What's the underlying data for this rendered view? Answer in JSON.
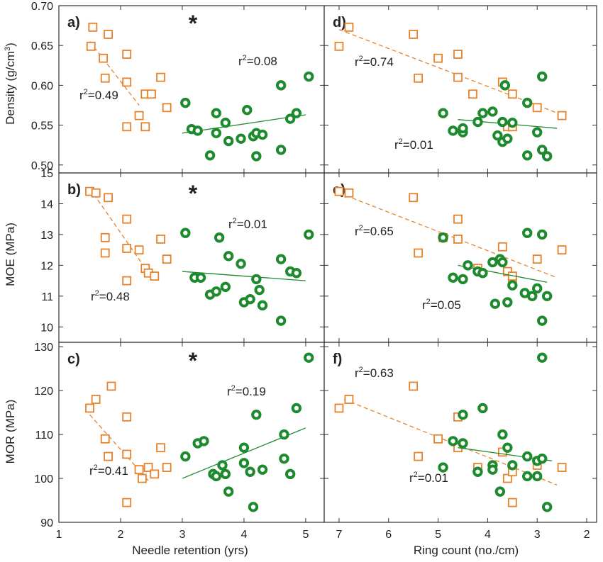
{
  "colors": {
    "orange": "#e8822a",
    "green": "#1e8a2e",
    "axis": "#333333"
  },
  "axes": {
    "left_xlabel": "Needle retention (yrs)",
    "right_xlabel": "Ring count (no./cm)",
    "left_ticks": [
      "1",
      "2",
      "3",
      "4",
      "5"
    ],
    "right_ticks": [
      "7",
      "6",
      "5",
      "4",
      "3",
      "2"
    ],
    "rows": [
      {
        "ylabel": "Density (g/cm³)",
        "ticks": [
          "0.50",
          "0.55",
          "0.60",
          "0.65",
          "0.70"
        ]
      },
      {
        "ylabel": "MOE (MPa)",
        "ticks": [
          "10",
          "11",
          "12",
          "13",
          "14",
          "15"
        ]
      },
      {
        "ylabel": "MOR (MPa)",
        "ticks": [
          "90",
          "100",
          "110",
          "120",
          "130"
        ]
      }
    ]
  },
  "chart_data": [
    {
      "type": "scatter",
      "panel": "a)",
      "marker": "*",
      "xlim": [
        1,
        5.3
      ],
      "ylim": [
        0.49,
        0.7
      ],
      "ylabel": "Density (g/cm³)",
      "series": [
        {
          "marker": "square",
          "annotation": "r²=0.49",
          "trend": [
            [
              1.5,
              0.655
            ],
            [
              2.3,
              0.575
            ]
          ],
          "points": [
            [
              1.55,
              0.673
            ],
            [
              1.52,
              0.649
            ],
            [
              1.72,
              0.634
            ],
            [
              1.8,
              0.664
            ],
            [
              1.75,
              0.609
            ],
            [
              2.1,
              0.639
            ],
            [
              2.1,
              0.604
            ],
            [
              2.1,
              0.548
            ],
            [
              2.3,
              0.562
            ],
            [
              2.4,
              0.589
            ],
            [
              2.4,
              0.548
            ],
            [
              2.5,
              0.589
            ],
            [
              2.65,
              0.61
            ],
            [
              2.75,
              0.572
            ]
          ]
        },
        {
          "marker": "circle",
          "annotation": "r²=0.08",
          "trend": [
            [
              3.0,
              0.54
            ],
            [
              5.0,
              0.563
            ]
          ],
          "points": [
            [
              3.05,
              0.578
            ],
            [
              3.15,
              0.545
            ],
            [
              3.25,
              0.543
            ],
            [
              3.45,
              0.512
            ],
            [
              3.55,
              0.54
            ],
            [
              3.55,
              0.565
            ],
            [
              3.7,
              0.553
            ],
            [
              3.75,
              0.53
            ],
            [
              3.95,
              0.533
            ],
            [
              4.05,
              0.569
            ],
            [
              4.15,
              0.536
            ],
            [
              4.2,
              0.54
            ],
            [
              4.2,
              0.511
            ],
            [
              4.3,
              0.538
            ],
            [
              4.6,
              0.6
            ],
            [
              4.6,
              0.519
            ],
            [
              4.75,
              0.558
            ],
            [
              4.85,
              0.565
            ],
            [
              5.05,
              0.611
            ]
          ]
        }
      ]
    },
    {
      "type": "scatter",
      "panel": "b)",
      "marker": "*",
      "xlim": [
        1,
        5.3
      ],
      "ylim": [
        9.5,
        15.0
      ],
      "ylabel": "MOE (MPa)",
      "series": [
        {
          "marker": "square",
          "annotation": "r²=0.48",
          "trend": [
            [
              1.5,
              14.5
            ],
            [
              2.35,
              12.05
            ]
          ],
          "points": [
            [
              1.5,
              14.4
            ],
            [
              1.6,
              14.35
            ],
            [
              1.8,
              14.2
            ],
            [
              1.75,
              12.9
            ],
            [
              1.75,
              12.4
            ],
            [
              2.1,
              13.5
            ],
            [
              2.1,
              12.55
            ],
            [
              2.1,
              11.5
            ],
            [
              2.3,
              12.5
            ],
            [
              2.4,
              11.9
            ],
            [
              2.45,
              11.75
            ],
            [
              2.55,
              11.65
            ],
            [
              2.65,
              12.85
            ],
            [
              2.75,
              12.2
            ]
          ]
        },
        {
          "marker": "circle",
          "annotation": "r²=0.01",
          "trend": [
            [
              3.0,
              11.8
            ],
            [
              5.0,
              11.5
            ]
          ],
          "points": [
            [
              3.05,
              13.05
            ],
            [
              3.2,
              11.6
            ],
            [
              3.3,
              11.6
            ],
            [
              3.45,
              11.05
            ],
            [
              3.55,
              11.15
            ],
            [
              3.6,
              12.9
            ],
            [
              3.7,
              11.3
            ],
            [
              3.75,
              12.3
            ],
            [
              3.95,
              12.05
            ],
            [
              4.0,
              10.8
            ],
            [
              4.1,
              10.9
            ],
            [
              4.2,
              11.55
            ],
            [
              4.25,
              11.2
            ],
            [
              4.3,
              10.7
            ],
            [
              4.6,
              12.2
            ],
            [
              4.6,
              10.2
            ],
            [
              4.75,
              11.8
            ],
            [
              4.85,
              11.75
            ],
            [
              5.05,
              13.0
            ]
          ]
        }
      ]
    },
    {
      "type": "scatter",
      "panel": "c)",
      "marker": "*",
      "xlim": [
        1,
        5.3
      ],
      "ylim": [
        90,
        131
      ],
      "ylabel": "MOR (MPa)",
      "series": [
        {
          "marker": "square",
          "annotation": "r²=0.41",
          "trend": [
            [
              1.5,
              114.5
            ],
            [
              2.45,
              99.5
            ]
          ],
          "points": [
            [
              1.5,
              116
            ],
            [
              1.6,
              118
            ],
            [
              1.75,
              109
            ],
            [
              1.8,
              105
            ],
            [
              1.85,
              121
            ],
            [
              2.1,
              114
            ],
            [
              2.1,
              105.5
            ],
            [
              2.1,
              94.5
            ],
            [
              2.3,
              102
            ],
            [
              2.35,
              100
            ],
            [
              2.45,
              102.5
            ],
            [
              2.55,
              101
            ],
            [
              2.65,
              107
            ],
            [
              2.75,
              102.5
            ]
          ]
        },
        {
          "marker": "circle",
          "annotation": "r²=0.19",
          "trend": [
            [
              3.0,
              100
            ],
            [
              5.0,
              111.5
            ]
          ],
          "points": [
            [
              3.05,
              105
            ],
            [
              3.25,
              108
            ],
            [
              3.35,
              108.5
            ],
            [
              3.5,
              101
            ],
            [
              3.55,
              100.5
            ],
            [
              3.65,
              103
            ],
            [
              3.7,
              101
            ],
            [
              3.75,
              97
            ],
            [
              4.0,
              103.5
            ],
            [
              4.0,
              107
            ],
            [
              4.15,
              93.5
            ],
            [
              4.2,
              114.5
            ],
            [
              4.3,
              102
            ],
            [
              4.65,
              104.5
            ],
            [
              4.65,
              110
            ],
            [
              4.75,
              101
            ],
            [
              4.85,
              116
            ],
            [
              5.05,
              127.5
            ],
            [
              4.1,
              101.5
            ]
          ]
        }
      ]
    },
    {
      "type": "scatter",
      "panel": "d)",
      "xlim": [
        7.3,
        1.8
      ],
      "ylim": [
        0.49,
        0.7
      ],
      "ylabel": "Density (g/cm³)",
      "series": [
        {
          "marker": "square",
          "annotation": "r²=0.74",
          "trend": [
            [
              7.0,
              0.67
            ],
            [
              2.5,
              0.563
            ]
          ],
          "points": [
            [
              7.0,
              0.649
            ],
            [
              6.8,
              0.673
            ],
            [
              5.5,
              0.664
            ],
            [
              5.4,
              0.609
            ],
            [
              5.0,
              0.634
            ],
            [
              4.6,
              0.639
            ],
            [
              4.6,
              0.61
            ],
            [
              4.3,
              0.589
            ],
            [
              3.7,
              0.604
            ],
            [
              3.6,
              0.548
            ],
            [
              3.5,
              0.589
            ],
            [
              3.5,
              0.548
            ],
            [
              3.0,
              0.572
            ],
            [
              2.5,
              0.562
            ]
          ]
        },
        {
          "marker": "circle",
          "annotation": "r²=0.01",
          "trend": [
            [
              4.6,
              0.557
            ],
            [
              2.6,
              0.546
            ]
          ],
          "points": [
            [
              4.9,
              0.565
            ],
            [
              4.7,
              0.543
            ],
            [
              4.5,
              0.541
            ],
            [
              4.5,
              0.546
            ],
            [
              4.2,
              0.554
            ],
            [
              4.1,
              0.565
            ],
            [
              3.9,
              0.567
            ],
            [
              3.8,
              0.537
            ],
            [
              3.7,
              0.529
            ],
            [
              3.7,
              0.554
            ],
            [
              3.65,
              0.6
            ],
            [
              3.6,
              0.533
            ],
            [
              3.5,
              0.553
            ],
            [
              3.2,
              0.578
            ],
            [
              3.2,
              0.512
            ],
            [
              3.0,
              0.541
            ],
            [
              2.9,
              0.519
            ],
            [
              2.9,
              0.611
            ],
            [
              2.8,
              0.511
            ]
          ]
        }
      ]
    },
    {
      "type": "scatter",
      "panel": "e)",
      "xlim": [
        7.3,
        1.8
      ],
      "ylim": [
        9.5,
        15.0
      ],
      "ylabel": "MOE (MPa)",
      "series": [
        {
          "marker": "square",
          "annotation": "r²=0.65",
          "trend": [
            [
              7.0,
              14.35
            ],
            [
              2.6,
              11.6
            ]
          ],
          "points": [
            [
              7.0,
              14.4
            ],
            [
              6.8,
              14.35
            ],
            [
              5.5,
              14.2
            ],
            [
              5.4,
              12.4
            ],
            [
              4.9,
              12.9
            ],
            [
              4.6,
              13.5
            ],
            [
              4.6,
              12.85
            ],
            [
              4.2,
              11.9
            ],
            [
              3.7,
              12.6
            ],
            [
              3.6,
              11.8
            ],
            [
              3.5,
              11.55
            ],
            [
              3.5,
              11.65
            ],
            [
              3.0,
              12.2
            ],
            [
              2.5,
              12.5
            ]
          ]
        },
        {
          "marker": "circle",
          "annotation": "r²=0.05",
          "trend": [
            [
              4.6,
              12.0
            ],
            [
              2.8,
              11.45
            ]
          ],
          "points": [
            [
              4.9,
              12.9
            ],
            [
              4.7,
              11.6
            ],
            [
              4.5,
              11.55
            ],
            [
              4.4,
              12.0
            ],
            [
              4.2,
              11.8
            ],
            [
              4.1,
              11.75
            ],
            [
              3.9,
              12.1
            ],
            [
              3.85,
              10.75
            ],
            [
              3.75,
              12.2
            ],
            [
              3.7,
              12.1
            ],
            [
              3.6,
              10.8
            ],
            [
              3.5,
              11.35
            ],
            [
              3.2,
              13.05
            ],
            [
              3.1,
              11.0
            ],
            [
              3.0,
              11.25
            ],
            [
              2.9,
              13.0
            ],
            [
              2.9,
              10.2
            ],
            [
              2.8,
              11.0
            ],
            [
              3.25,
              11.1
            ]
          ]
        }
      ]
    },
    {
      "type": "scatter",
      "panel": "f)",
      "xlim": [
        7.3,
        1.8
      ],
      "ylim": [
        90,
        131
      ],
      "ylabel": "MOR (MPa)",
      "series": [
        {
          "marker": "square",
          "annotation": "r²=0.63",
          "trend": [
            [
              6.9,
              118
            ],
            [
              2.6,
              98.5
            ]
          ],
          "points": [
            [
              7.0,
              116
            ],
            [
              6.8,
              118
            ],
            [
              5.5,
              121
            ],
            [
              5.4,
              105
            ],
            [
              5.0,
              109
            ],
            [
              4.6,
              114
            ],
            [
              4.6,
              107
            ],
            [
              4.2,
              102.5
            ],
            [
              3.7,
              106
            ],
            [
              3.6,
              100
            ],
            [
              3.5,
              101.5
            ],
            [
              3.5,
              94.5
            ],
            [
              3.0,
              103
            ],
            [
              2.5,
              102.5
            ]
          ]
        },
        {
          "marker": "circle",
          "annotation": "r²=0.01",
          "trend": [
            [
              4.6,
              107
            ],
            [
              2.7,
              104
            ]
          ],
          "points": [
            [
              4.9,
              102.5
            ],
            [
              4.7,
              108.5
            ],
            [
              4.5,
              114.5
            ],
            [
              4.5,
              108
            ],
            [
              4.2,
              101.5
            ],
            [
              4.1,
              116
            ],
            [
              3.9,
              103
            ],
            [
              3.9,
              102
            ],
            [
              3.75,
              97
            ],
            [
              3.7,
              110
            ],
            [
              3.6,
              107
            ],
            [
              3.5,
              103
            ],
            [
              3.2,
              105
            ],
            [
              3.2,
              100.5
            ],
            [
              3.0,
              100.5
            ],
            [
              3.0,
              104
            ],
            [
              2.9,
              127.5
            ],
            [
              2.9,
              104.5
            ],
            [
              2.8,
              93.5
            ]
          ]
        }
      ]
    }
  ]
}
